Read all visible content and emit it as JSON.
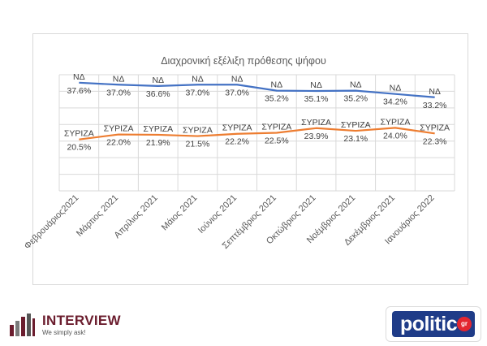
{
  "chart_data": {
    "type": "line",
    "title": "Διαχρονική εξέλιξη πρόθεσης ψήφου",
    "categories": [
      "Φεβρουάριος2021",
      "Μάρτιος 2021",
      "Απρίλιος 2021",
      "Μάιος 2021",
      "Ιούνιος 2021",
      "Σεπτέμβριος 2021",
      "Οκτώβριος 2021",
      "Νοέμβριος 2021",
      "Δεκέμβριος 2021",
      "Ιανουάριος 2022"
    ],
    "series": [
      {
        "name": "ΝΔ",
        "color": "#4472c4",
        "values": [
          37.6,
          37.0,
          36.6,
          37.0,
          37.0,
          35.2,
          35.1,
          35.2,
          34.2,
          33.2
        ],
        "labels": [
          "37.6%",
          "37.0%",
          "36.6%",
          "37.0%",
          "37.0%",
          "35.2%",
          "35.1%",
          "35.2%",
          "34.2%",
          "33.2%"
        ]
      },
      {
        "name": "ΣΥΡΙΖΑ",
        "color": "#ed7d31",
        "values": [
          20.5,
          22.0,
          21.9,
          21.5,
          22.2,
          22.5,
          23.9,
          23.1,
          24.0,
          22.3
        ],
        "labels": [
          "20.5%",
          "22.0%",
          "21.9%",
          "21.5%",
          "22.2%",
          "22.5%",
          "23.9%",
          "23.1%",
          "24.0%",
          "22.3%"
        ]
      }
    ],
    "ylim": [
      5,
      40
    ],
    "grid": true,
    "xlabel": "",
    "ylabel": ""
  },
  "logos": {
    "interview_name": "INTERVIEW",
    "interview_tagline": "We simply ask!",
    "politic_name": "politic",
    "politic_suffix": "gr"
  }
}
